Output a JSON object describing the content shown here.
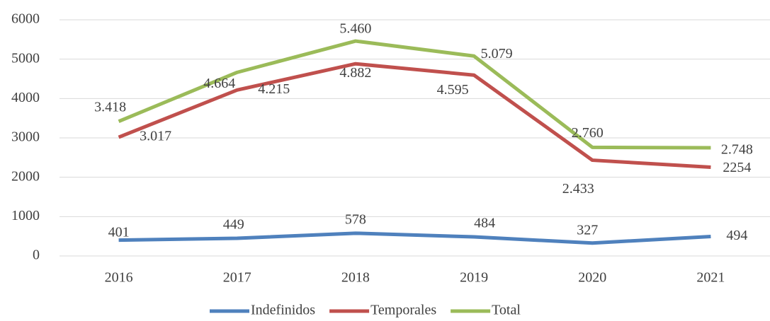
{
  "chart_data": {
    "type": "line",
    "categories": [
      "2016",
      "2017",
      "2018",
      "2019",
      "2020",
      "2021"
    ],
    "series": [
      {
        "name": "Indefinidos",
        "color": "#4f81bd",
        "values": [
          401,
          449,
          578,
          484,
          327,
          494
        ],
        "value_labels": [
          "401",
          "449",
          "578",
          "484",
          "327",
          "494"
        ]
      },
      {
        "name": "Temporales",
        "color": "#c0504d",
        "values": [
          3017,
          4215,
          4882,
          4595,
          2433,
          2254
        ],
        "value_labels": [
          "3.017",
          "4.215",
          "4.882",
          "4.595",
          "2.433",
          "2254"
        ]
      },
      {
        "name": "Total",
        "color": "#9bbb59",
        "values": [
          3418,
          4664,
          5460,
          5079,
          2760,
          2748
        ],
        "value_labels": [
          "3.418",
          "4.664",
          "5.460",
          "5.079",
          "2.760",
          "2.748"
        ]
      }
    ],
    "ylim": [
      0,
      6000
    ],
    "yticks": [
      0,
      1000,
      2000,
      3000,
      4000,
      5000,
      6000
    ],
    "grid": true,
    "legend": "bottom"
  }
}
